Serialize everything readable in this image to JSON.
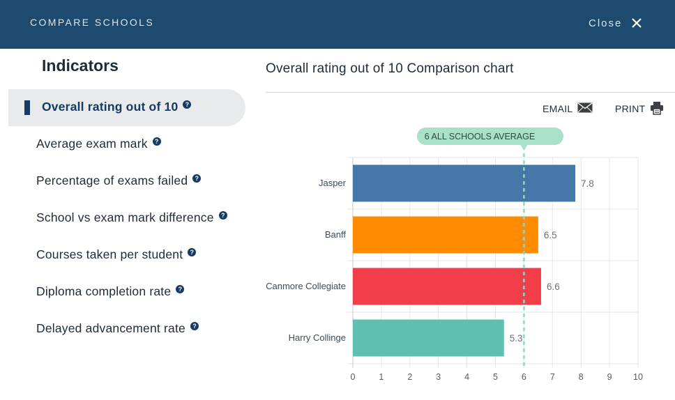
{
  "header": {
    "title": "COMPARE SCHOOLS",
    "close_label": "Close"
  },
  "indicators": {
    "title": "Indicators",
    "help_glyph": "?",
    "items": [
      {
        "label": "Overall rating out of 10",
        "active": true
      },
      {
        "label": "Average exam mark",
        "active": false
      },
      {
        "label": "Percentage of exams failed",
        "active": false
      },
      {
        "label": "School vs exam mark difference",
        "active": false
      },
      {
        "label": "Courses taken per student",
        "active": false
      },
      {
        "label": "Diploma completion rate",
        "active": false
      },
      {
        "label": "Delayed advancement rate",
        "active": false
      }
    ]
  },
  "chart_panel": {
    "title": "Overall rating out of 10 Comparison chart",
    "email_label": "EMAIL",
    "print_label": "PRINT"
  },
  "colors": {
    "header_bg": "#1d4a6e",
    "accent": "#153a64",
    "average_badge": "#a8e0c9",
    "average_line": "#8fd6c3"
  },
  "icons": {
    "close": "close-icon",
    "help": "help-icon",
    "email": "envelope-icon",
    "print": "printer-icon"
  },
  "chart_data": {
    "type": "bar",
    "orientation": "horizontal",
    "categories": [
      "Jasper",
      "Banff",
      "Canmore Collegiate",
      "Harry Collinge"
    ],
    "values": [
      7.8,
      6.5,
      6.6,
      5.3
    ],
    "value_labels": [
      "7.8",
      "6.5",
      "6.6",
      "5.3"
    ],
    "bar_colors": [
      "#4677a9",
      "#ff8c00",
      "#f23d4b",
      "#5fbfb1"
    ],
    "xlim": [
      0,
      10
    ],
    "x_ticks": [
      0,
      1,
      2,
      3,
      4,
      5,
      6,
      7,
      8,
      9,
      10
    ],
    "grid": true,
    "reference_line": {
      "value": 6,
      "label": "6 ALL SCHOOLS AVERAGE"
    }
  }
}
